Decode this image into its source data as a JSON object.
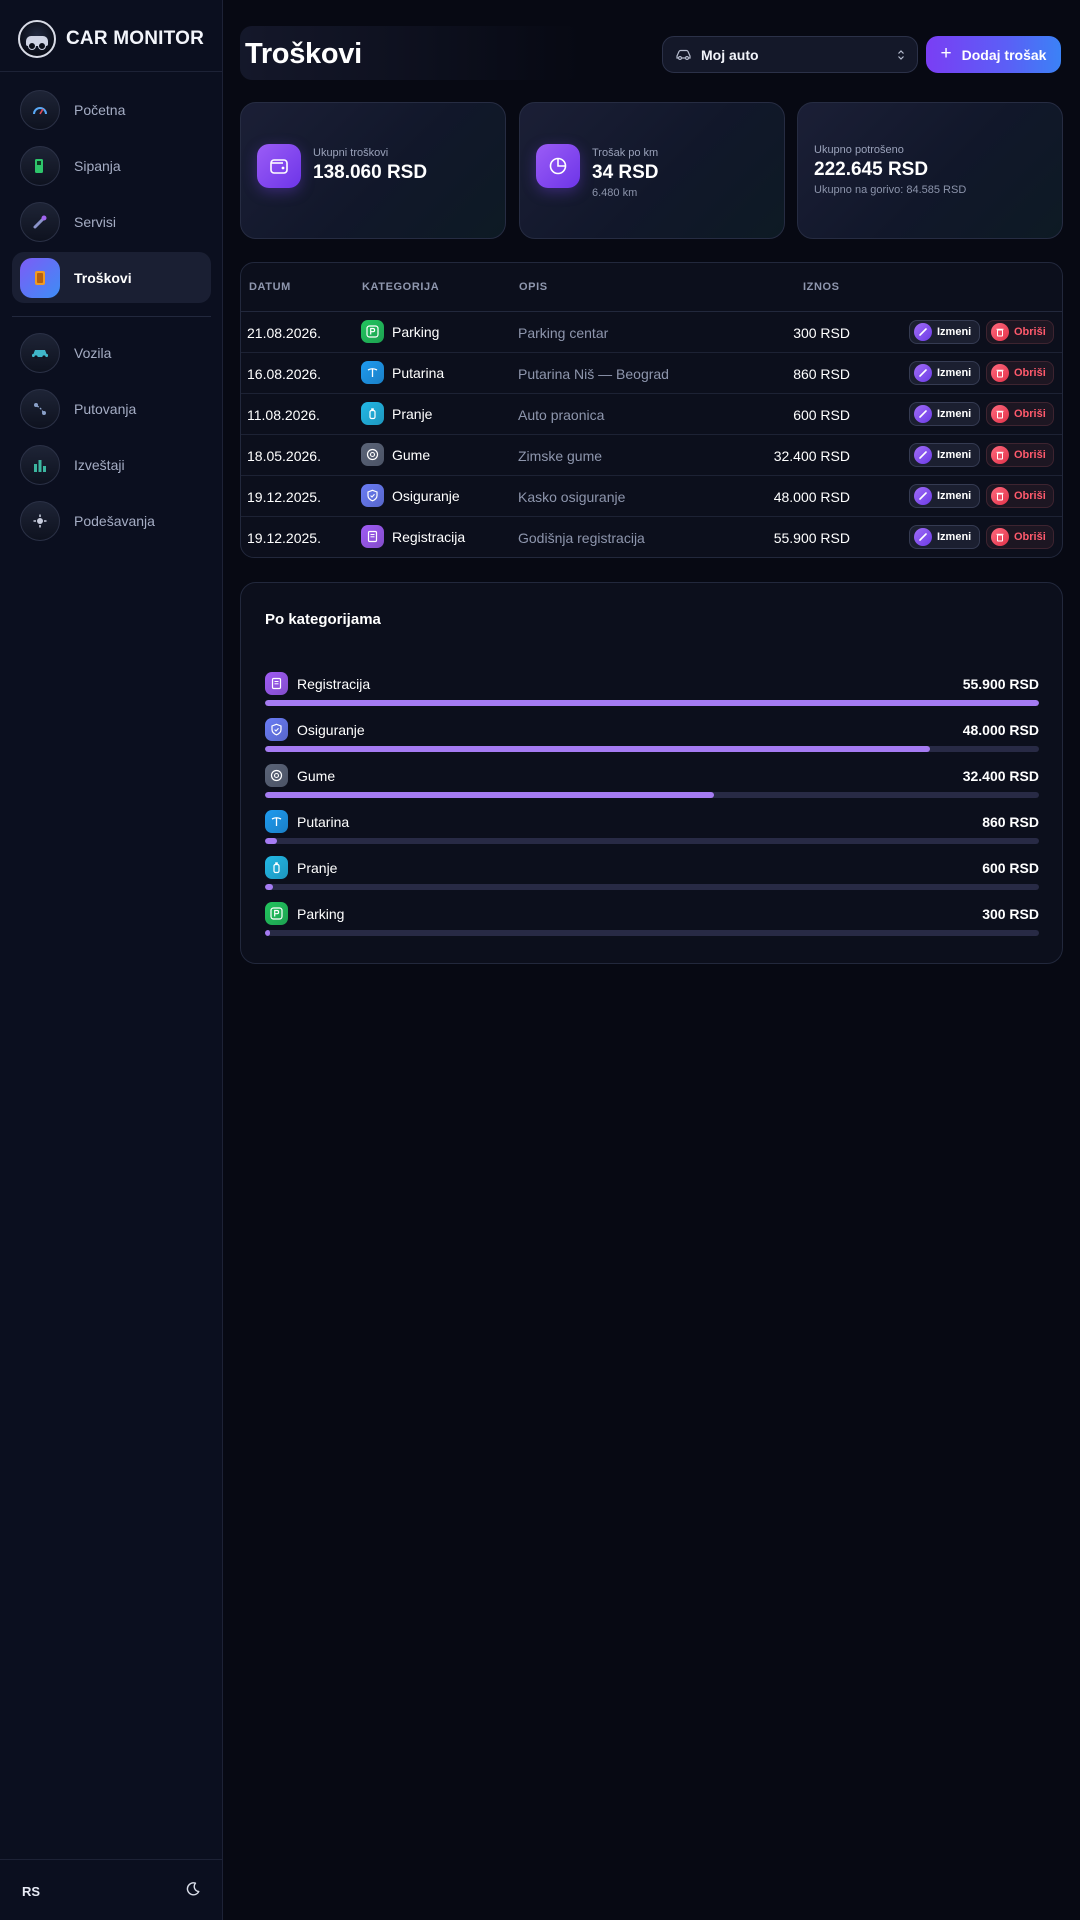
{
  "brand": {
    "name": "CAR MONITOR"
  },
  "nav": {
    "primary": [
      {
        "label": "Početna",
        "icon": "speedometer-icon",
        "active": false
      },
      {
        "label": "Sipanja",
        "icon": "fuel-pump-icon",
        "active": false
      },
      {
        "label": "Servisi",
        "icon": "wrench-icon",
        "active": false
      },
      {
        "label": "Troškovi",
        "icon": "wallet-icon",
        "active": true
      }
    ],
    "secondary": [
      {
        "label": "Vozila",
        "icon": "car-icon",
        "active": false
      },
      {
        "label": "Putovanja",
        "icon": "route-icon",
        "active": false
      },
      {
        "label": "Izveštaji",
        "icon": "bar-chart-icon",
        "active": false
      },
      {
        "label": "Podešavanja",
        "icon": "gear-icon",
        "active": false
      }
    ]
  },
  "footer": {
    "language": "RS",
    "theme_icon": "moon-icon"
  },
  "header": {
    "title": "Troškovi",
    "vehicle_select": {
      "value": "Moj auto"
    },
    "add_button": "Dodaj trošak"
  },
  "stats": {
    "total": {
      "label": "Ukupni troškovi",
      "value": "138.060 RSD"
    },
    "per_km": {
      "label": "Trošak po km",
      "value": "34 RSD",
      "sub": "6.480 km"
    },
    "spent": {
      "label": "Ukupno potrošeno",
      "value": "222.645 RSD",
      "sub": "Ukupno na gorivo: 84.585 RSD"
    }
  },
  "table": {
    "columns": {
      "date": "DATUM",
      "category": "KATEGORIJA",
      "description": "OPIS",
      "amount": "IZNOS"
    },
    "edit_label": "Izmeni",
    "delete_label": "Obriši",
    "rows": [
      {
        "date": "21.08.2026.",
        "category": "Parking",
        "description": "Parking centar",
        "amount": "300 RSD"
      },
      {
        "date": "16.08.2026.",
        "category": "Putarina",
        "description": "Putarina Niš — Beograd",
        "amount": "860 RSD"
      },
      {
        "date": "11.08.2026.",
        "category": "Pranje",
        "description": "Auto praonica",
        "amount": "600 RSD"
      },
      {
        "date": "18.05.2026.",
        "category": "Gume",
        "description": "Zimske gume",
        "amount": "32.400 RSD"
      },
      {
        "date": "19.12.2025.",
        "category": "Osiguranje",
        "description": "Kasko osiguranje",
        "amount": "48.000 RSD"
      },
      {
        "date": "19.12.2025.",
        "category": "Registracija",
        "description": "Godišnja registracija",
        "amount": "55.900 RSD"
      }
    ]
  },
  "categories": {
    "title": "Po kategorijama",
    "items": [
      {
        "name": "Registracija",
        "amount": "55.900 RSD",
        "share": 1.0
      },
      {
        "name": "Osiguranje",
        "amount": "48.000 RSD",
        "share": 0.859
      },
      {
        "name": "Gume",
        "amount": "32.400 RSD",
        "share": 0.58
      },
      {
        "name": "Putarina",
        "amount": "860 RSD",
        "share": 0.0154
      },
      {
        "name": "Pranje",
        "amount": "600 RSD",
        "share": 0.0107
      },
      {
        "name": "Parking",
        "amount": "300 RSD",
        "share": 0.0054
      }
    ]
  },
  "colors": {
    "accent": "#7a3ef4",
    "bar": "#a57bf2",
    "danger": "#ff5a6c",
    "category": {
      "Parking": "#22c55e",
      "Putarina": "#1e9bf0",
      "Pranje": "#22b8e6",
      "Gume": "#5b6478",
      "Osiguranje": "#6a7cf5",
      "Registracija": "#a05cf5"
    }
  }
}
